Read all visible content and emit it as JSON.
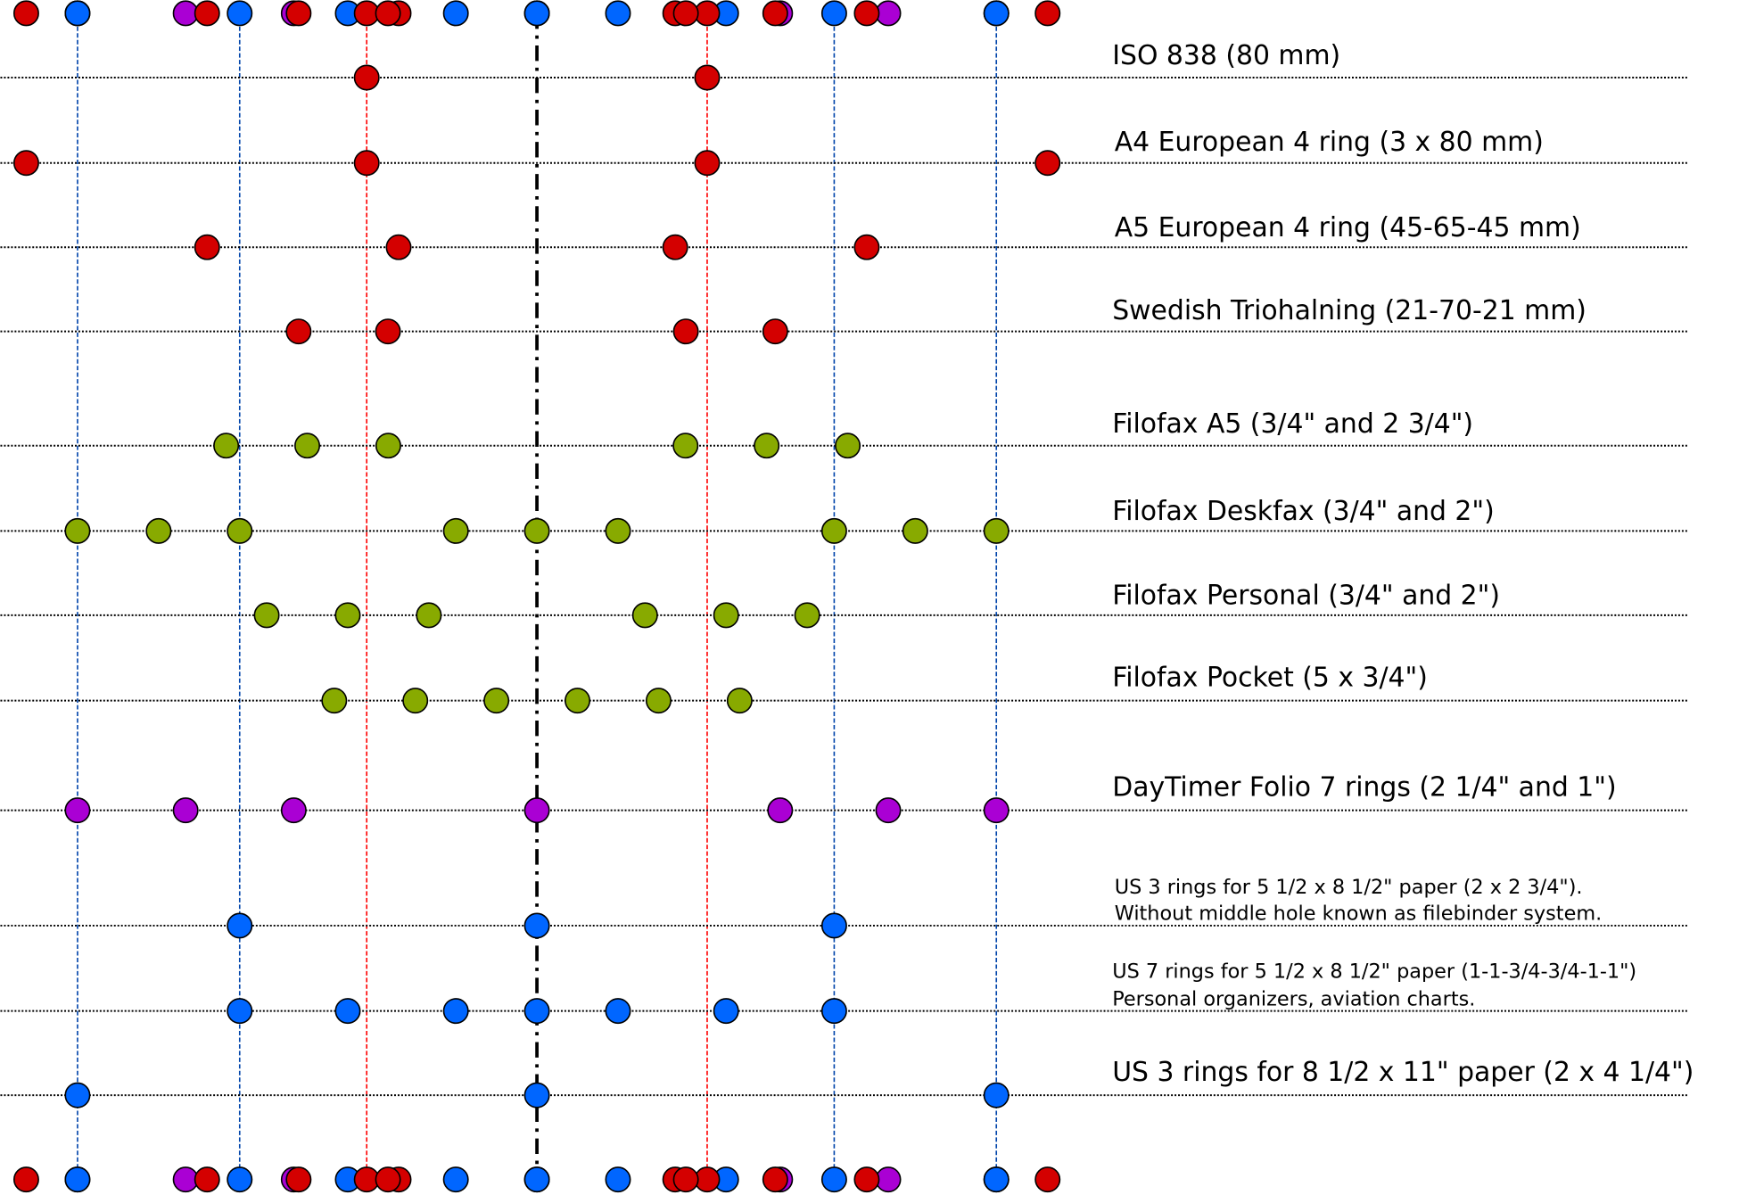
{
  "colors": {
    "iso": "#d40000",
    "filofax": "#88aa00",
    "daytimer": "#aa00d4",
    "us": "#0066ff",
    "guide_blue": "#0044aa",
    "guide_red": "#ff0000",
    "centre_line": "#000000"
  },
  "guides_mm": {
    "blue": [
      -107.95,
      -69.85,
      69.85,
      107.95
    ],
    "red": [
      -40,
      40
    ],
    "centre": 0
  },
  "rows": [
    {
      "label": [
        "ISO 838 (80 mm)"
      ],
      "group": "iso",
      "holes_mm": [
        -40,
        40
      ]
    },
    {
      "label": [
        "A4 European 4 ring (3 x 80 mm)"
      ],
      "group": "iso",
      "holes_mm": [
        -120,
        -40,
        40,
        120
      ]
    },
    {
      "label": [
        "A5 European 4 ring (45-65-45 mm)"
      ],
      "group": "iso",
      "holes_mm": [
        -77.5,
        -32.5,
        32.5,
        77.5
      ]
    },
    {
      "label": [
        "Swedish Triohalning (21-70-21 mm)"
      ],
      "group": "iso",
      "holes_mm": [
        -56,
        -35,
        35,
        56
      ]
    },
    {
      "label": [
        "Filofax A5 (3/4\" and 2 3/4\")"
      ],
      "group": "filofax",
      "holes_mm": [
        -73.025,
        -53.975,
        -34.925,
        34.925,
        53.975,
        73.025
      ]
    },
    {
      "label": [
        "Filofax Deskfax (3/4\" and 2\")"
      ],
      "group": "filofax",
      "holes_mm": [
        -107.95,
        -88.9,
        -69.85,
        -19.05,
        0,
        19.05,
        69.85,
        88.9,
        107.95
      ]
    },
    {
      "label": [
        "Filofax Personal (3/4\" and 2\")"
      ],
      "group": "filofax",
      "holes_mm": [
        -63.5,
        -44.45,
        -25.4,
        25.4,
        44.45,
        63.5
      ]
    },
    {
      "label": [
        "Filofax Pocket (5 x 3/4\")"
      ],
      "group": "filofax",
      "holes_mm": [
        -47.625,
        -28.575,
        -9.525,
        9.525,
        28.575,
        47.625
      ]
    },
    {
      "label": [
        "DayTimer Folio 7 rings (2 1/4\" and 1\")"
      ],
      "group": "daytimer",
      "holes_mm": [
        -107.95,
        -82.55,
        -57.15,
        0,
        57.15,
        82.55,
        107.95
      ]
    },
    {
      "label": [
        "US 3 rings for 5 1/2 x 8 1/2\" paper (2 x 2 3/4\").",
        "Without middle hole known as filebinder system."
      ],
      "group": "us",
      "holes_mm": [
        -69.85,
        0,
        69.85
      ]
    },
    {
      "label": [
        "US 7 rings for 5 1/2 x 8 1/2\" paper (1-1-3/4-3/4-1-1\")",
        "Personal organizers, aviation charts."
      ],
      "group": "us",
      "holes_mm": [
        -69.85,
        -44.45,
        -19.05,
        0,
        19.05,
        44.45,
        69.85
      ]
    },
    {
      "label": [
        "US 3 rings for 8 1/2 x 11\" paper (2 x 4 1/4\")"
      ],
      "group": "us",
      "holes_mm": [
        -107.95,
        0,
        107.95
      ]
    }
  ]
}
